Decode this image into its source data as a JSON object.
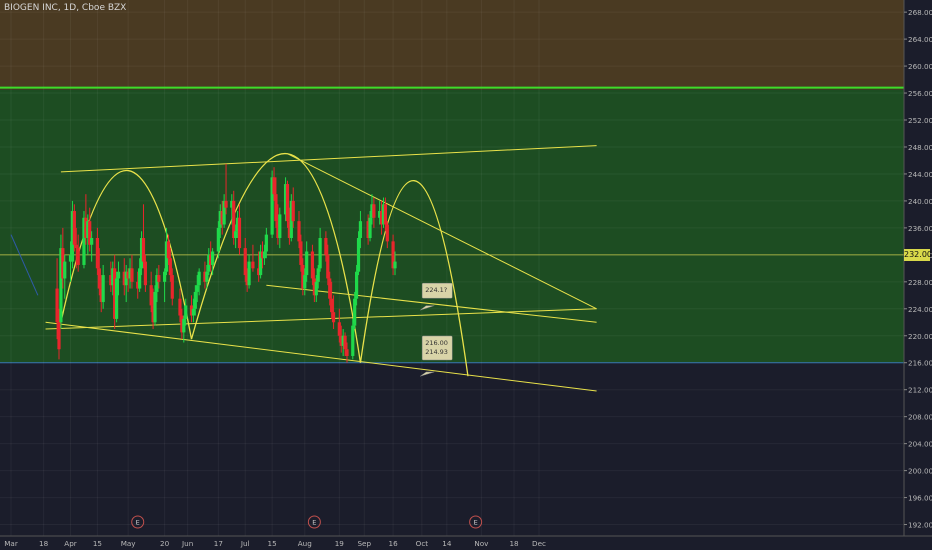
{
  "window": {
    "title": "BIOGEN INC, 1D, Cboe BZX"
  },
  "chart_data": {
    "type": "candlestick",
    "title": "BIOGEN INC, 1D, Cboe BZX",
    "symbol": "BIOGEN INC",
    "interval": "1D",
    "exchange": "Cboe BZX",
    "ylim": [
      190.3,
      269.8
    ],
    "y_ticks": [
      192,
      196,
      200,
      204,
      208,
      212,
      216,
      220,
      224,
      228,
      232,
      236,
      240,
      244,
      248,
      252,
      256,
      260,
      264,
      268
    ],
    "x_ticks": [
      "Mar",
      "18",
      "Apr",
      "15",
      "May",
      "20",
      "Jun",
      "17",
      "Jul",
      "15",
      "Aug",
      "19",
      "Sep",
      "16",
      "Oct",
      "14",
      "Nov",
      "18",
      "Dec"
    ],
    "current_price_label": "232.00",
    "colors": {
      "up": "#1fd94a",
      "down": "#e8262c",
      "trend_lines": "#e9e24a",
      "resistance_line": "#3cdd2a",
      "upper_zone": "#4a3a22",
      "middle_zone": "#1d4d22",
      "lower_zone": "#1b1d2b"
    },
    "zones": [
      {
        "name": "upper",
        "from": 256.5,
        "to": 270
      },
      {
        "name": "middle",
        "from": 216.0,
        "to": 256.5
      },
      {
        "name": "lower",
        "from": 190,
        "to": 216.0
      }
    ],
    "resistance_level": 256.8,
    "candles": [
      {
        "x": "Mar 25",
        "o": 227.0,
        "h": 231.5,
        "l": 219.5,
        "c": 222.0
      },
      {
        "x": "Mar 26",
        "o": 222.5,
        "h": 224.0,
        "l": 216.5,
        "c": 218.0
      },
      {
        "x": "Mar 27",
        "o": 222.0,
        "h": 235.0,
        "l": 221.0,
        "c": 233.0
      },
      {
        "x": "Mar 28",
        "o": 233.0,
        "h": 236.0,
        "l": 227.0,
        "c": 228.5
      },
      {
        "x": "Mar 29",
        "o": 228.5,
        "h": 232.0,
        "l": 225.5,
        "c": 231.0
      },
      {
        "x": "Apr 1",
        "o": 231.0,
        "h": 234.0,
        "l": 228.0,
        "c": 232.0
      },
      {
        "x": "Apr 2",
        "o": 231.0,
        "h": 240.0,
        "l": 230.0,
        "c": 238.5
      },
      {
        "x": "Apr 3",
        "o": 238.5,
        "h": 239.5,
        "l": 232.5,
        "c": 233.5
      },
      {
        "x": "Apr 4",
        "o": 233.5,
        "h": 236.0,
        "l": 230.0,
        "c": 233.0
      },
      {
        "x": "Apr 5",
        "o": 233.0,
        "h": 235.0,
        "l": 229.5,
        "c": 230.5
      },
      {
        "x": "Apr 8",
        "o": 230.5,
        "h": 238.5,
        "l": 230.0,
        "c": 237.5
      },
      {
        "x": "Apr 9",
        "o": 237.5,
        "h": 241.0,
        "l": 233.5,
        "c": 234.5
      },
      {
        "x": "Apr 10",
        "o": 234.5,
        "h": 238.0,
        "l": 232.0,
        "c": 237.0
      },
      {
        "x": "Apr 11",
        "o": 237.0,
        "h": 239.0,
        "l": 232.5,
        "c": 233.5
      },
      {
        "x": "Apr 12",
        "o": 233.5,
        "h": 235.5,
        "l": 231.0,
        "c": 234.5
      },
      {
        "x": "Apr 15",
        "o": 234.5,
        "h": 236.0,
        "l": 229.0,
        "c": 230.0
      },
      {
        "x": "Apr 16",
        "o": 230.0,
        "h": 233.0,
        "l": 226.0,
        "c": 227.0
      },
      {
        "x": "Apr 17",
        "o": 227.0,
        "h": 229.0,
        "l": 223.5,
        "c": 225.0
      },
      {
        "x": "Apr 18",
        "o": 225.0,
        "h": 230.5,
        "l": 224.0,
        "c": 229.0
      },
      {
        "x": "Apr 22",
        "o": 229.0,
        "h": 231.0,
        "l": 226.5,
        "c": 227.5
      },
      {
        "x": "Apr 23",
        "o": 227.5,
        "h": 231.0,
        "l": 226.0,
        "c": 230.0
      },
      {
        "x": "Apr 24",
        "o": 230.0,
        "h": 232.0,
        "l": 221.0,
        "c": 222.5
      },
      {
        "x": "Apr 25",
        "o": 222.5,
        "h": 229.5,
        "l": 222.0,
        "c": 228.5
      },
      {
        "x": "Apr 26",
        "o": 228.5,
        "h": 231.0,
        "l": 226.0,
        "c": 229.5
      },
      {
        "x": "Apr 29",
        "o": 229.5,
        "h": 231.5,
        "l": 226.0,
        "c": 227.5
      },
      {
        "x": "Apr 30",
        "o": 227.5,
        "h": 230.5,
        "l": 225.0,
        "c": 229.5
      },
      {
        "x": "May 1",
        "o": 229.5,
        "h": 230.0,
        "l": 226.5,
        "c": 228.5
      },
      {
        "x": "May 2",
        "o": 228.5,
        "h": 231.5,
        "l": 227.0,
        "c": 230.0
      },
      {
        "x": "May 3",
        "o": 230.0,
        "h": 232.0,
        "l": 227.0,
        "c": 228.0
      },
      {
        "x": "May 6",
        "o": 228.0,
        "h": 229.5,
        "l": 225.5,
        "c": 227.0
      },
      {
        "x": "May 7",
        "o": 227.0,
        "h": 231.5,
        "l": 226.5,
        "c": 230.0
      },
      {
        "x": "May 8",
        "o": 230.0,
        "h": 235.5,
        "l": 229.0,
        "c": 234.5
      },
      {
        "x": "May 9",
        "o": 234.5,
        "h": 239.5,
        "l": 230.0,
        "c": 231.0
      },
      {
        "x": "May 10",
        "o": 231.0,
        "h": 232.0,
        "l": 226.5,
        "c": 227.5
      },
      {
        "x": "May 13",
        "o": 227.5,
        "h": 229.5,
        "l": 223.5,
        "c": 224.5
      },
      {
        "x": "May 14",
        "o": 224.5,
        "h": 227.0,
        "l": 221.0,
        "c": 222.0
      },
      {
        "x": "May 15",
        "o": 222.0,
        "h": 227.5,
        "l": 221.5,
        "c": 226.5
      },
      {
        "x": "May 16",
        "o": 226.5,
        "h": 230.0,
        "l": 225.0,
        "c": 229.0
      },
      {
        "x": "May 17",
        "o": 229.0,
        "h": 230.5,
        "l": 227.0,
        "c": 228.0
      },
      {
        "x": "May 20",
        "o": 228.0,
        "h": 230.0,
        "l": 225.0,
        "c": 229.5
      },
      {
        "x": "May 21",
        "o": 229.5,
        "h": 236.0,
        "l": 229.0,
        "c": 234.0
      },
      {
        "x": "May 22",
        "o": 234.0,
        "h": 235.0,
        "l": 230.5,
        "c": 231.5
      },
      {
        "x": "May 23",
        "o": 231.5,
        "h": 233.0,
        "l": 228.0,
        "c": 229.0
      },
      {
        "x": "May 24",
        "o": 229.0,
        "h": 230.0,
        "l": 224.5,
        "c": 225.5
      },
      {
        "x": "May 28",
        "o": 225.5,
        "h": 227.0,
        "l": 222.0,
        "c": 223.0
      },
      {
        "x": "May 29",
        "o": 223.0,
        "h": 224.0,
        "l": 219.5,
        "c": 220.5
      },
      {
        "x": "May 30",
        "o": 220.5,
        "h": 223.0,
        "l": 219.0,
        "c": 222.5
      },
      {
        "x": "May 31",
        "o": 222.5,
        "h": 225.5,
        "l": 221.5,
        "c": 224.5
      },
      {
        "x": "Jun 3",
        "o": 224.5,
        "h": 226.0,
        "l": 222.0,
        "c": 223.0
      },
      {
        "x": "Jun 4",
        "o": 223.0,
        "h": 225.5,
        "l": 222.0,
        "c": 224.0
      },
      {
        "x": "Jun 5",
        "o": 224.0,
        "h": 227.5,
        "l": 223.0,
        "c": 226.5
      },
      {
        "x": "Jun 6",
        "o": 226.5,
        "h": 229.0,
        "l": 225.0,
        "c": 227.5
      },
      {
        "x": "Jun 7",
        "o": 227.5,
        "h": 230.0,
        "l": 226.0,
        "c": 229.5
      },
      {
        "x": "Jun 10",
        "o": 229.5,
        "h": 231.0,
        "l": 227.0,
        "c": 228.0
      },
      {
        "x": "Jun 11",
        "o": 228.0,
        "h": 230.5,
        "l": 227.0,
        "c": 229.5
      },
      {
        "x": "Jun 12",
        "o": 229.5,
        "h": 233.0,
        "l": 229.0,
        "c": 232.0
      },
      {
        "x": "Jun 13",
        "o": 232.0,
        "h": 234.0,
        "l": 229.5,
        "c": 230.5
      },
      {
        "x": "Jun 14",
        "o": 230.5,
        "h": 233.0,
        "l": 229.0,
        "c": 232.5
      },
      {
        "x": "Jun 17",
        "o": 232.5,
        "h": 237.0,
        "l": 231.5,
        "c": 236.0
      },
      {
        "x": "Jun 18",
        "o": 236.0,
        "h": 239.5,
        "l": 234.5,
        "c": 238.5
      },
      {
        "x": "Jun 19",
        "o": 238.5,
        "h": 240.0,
        "l": 235.0,
        "c": 236.5
      },
      {
        "x": "Jun 20",
        "o": 236.5,
        "h": 241.0,
        "l": 236.0,
        "c": 240.0
      },
      {
        "x": "Jun 21",
        "o": 240.0,
        "h": 245.5,
        "l": 238.0,
        "c": 239.0
      },
      {
        "x": "Jun 24",
        "o": 239.0,
        "h": 241.0,
        "l": 236.5,
        "c": 240.0
      },
      {
        "x": "Jun 25",
        "o": 240.0,
        "h": 241.5,
        "l": 233.5,
        "c": 234.5
      },
      {
        "x": "Jun 26",
        "o": 234.5,
        "h": 236.5,
        "l": 233.0,
        "c": 235.5
      },
      {
        "x": "Jun 27",
        "o": 235.5,
        "h": 238.5,
        "l": 234.5,
        "c": 237.5
      },
      {
        "x": "Jun 28",
        "o": 237.5,
        "h": 239.5,
        "l": 232.0,
        "c": 233.0
      },
      {
        "x": "Jul 1",
        "o": 233.0,
        "h": 234.5,
        "l": 228.0,
        "c": 229.0
      },
      {
        "x": "Jul 2",
        "o": 229.0,
        "h": 230.0,
        "l": 226.5,
        "c": 227.5
      },
      {
        "x": "Jul 3",
        "o": 227.5,
        "h": 232.0,
        "l": 227.0,
        "c": 231.0
      },
      {
        "x": "Jul 5",
        "o": 231.0,
        "h": 233.5,
        "l": 229.5,
        "c": 230.0
      },
      {
        "x": "Jul 8",
        "o": 230.0,
        "h": 232.5,
        "l": 228.0,
        "c": 229.0
      },
      {
        "x": "Jul 9",
        "o": 229.0,
        "h": 233.5,
        "l": 228.5,
        "c": 232.5
      },
      {
        "x": "Jul 10",
        "o": 232.5,
        "h": 234.0,
        "l": 230.0,
        "c": 231.5
      },
      {
        "x": "Jul 11",
        "o": 231.5,
        "h": 233.5,
        "l": 230.5,
        "c": 232.5
      },
      {
        "x": "Jul 12",
        "o": 232.5,
        "h": 236.0,
        "l": 231.5,
        "c": 235.0
      },
      {
        "x": "Jul 15",
        "o": 235.0,
        "h": 244.5,
        "l": 234.5,
        "c": 243.5
      },
      {
        "x": "Jul 16",
        "o": 243.5,
        "h": 245.0,
        "l": 240.0,
        "c": 241.0
      },
      {
        "x": "Jul 17",
        "o": 241.0,
        "h": 243.5,
        "l": 236.0,
        "c": 237.0
      },
      {
        "x": "Jul 18",
        "o": 237.0,
        "h": 239.5,
        "l": 233.5,
        "c": 234.5
      },
      {
        "x": "Jul 19",
        "o": 234.5,
        "h": 239.0,
        "l": 233.0,
        "c": 238.0
      },
      {
        "x": "Jul 22",
        "o": 238.0,
        "h": 243.5,
        "l": 237.0,
        "c": 242.5
      },
      {
        "x": "Jul 23",
        "o": 242.5,
        "h": 243.0,
        "l": 236.0,
        "c": 237.0
      },
      {
        "x": "Jul 24",
        "o": 237.0,
        "h": 239.0,
        "l": 233.5,
        "c": 234.5
      },
      {
        "x": "Jul 25",
        "o": 234.5,
        "h": 241.0,
        "l": 234.0,
        "c": 240.0
      },
      {
        "x": "Jul 26",
        "o": 240.0,
        "h": 242.0,
        "l": 236.0,
        "c": 237.0
      },
      {
        "x": "Jul 29",
        "o": 237.0,
        "h": 238.5,
        "l": 233.0,
        "c": 234.0
      },
      {
        "x": "Jul 30",
        "o": 234.0,
        "h": 235.0,
        "l": 229.5,
        "c": 230.5
      },
      {
        "x": "Jul 31",
        "o": 230.5,
        "h": 231.5,
        "l": 226.0,
        "c": 227.0
      },
      {
        "x": "Aug 1",
        "o": 227.0,
        "h": 230.0,
        "l": 226.0,
        "c": 229.0
      },
      {
        "x": "Aug 2",
        "o": 229.0,
        "h": 234.0,
        "l": 228.0,
        "c": 232.5
      },
      {
        "x": "Aug 5",
        "o": 232.5,
        "h": 233.5,
        "l": 227.5,
        "c": 228.5
      },
      {
        "x": "Aug 6",
        "o": 228.5,
        "h": 230.0,
        "l": 225.0,
        "c": 226.0
      },
      {
        "x": "Aug 7",
        "o": 226.0,
        "h": 229.0,
        "l": 225.0,
        "c": 228.0
      },
      {
        "x": "Aug 8",
        "o": 228.0,
        "h": 230.5,
        "l": 227.0,
        "c": 230.0
      },
      {
        "x": "Aug 9",
        "o": 230.0,
        "h": 236.0,
        "l": 229.5,
        "c": 234.5
      },
      {
        "x": "Aug 12",
        "o": 234.5,
        "h": 235.5,
        "l": 231.0,
        "c": 232.0
      },
      {
        "x": "Aug 13",
        "o": 232.0,
        "h": 233.5,
        "l": 227.5,
        "c": 228.5
      },
      {
        "x": "Aug 14",
        "o": 228.5,
        "h": 229.5,
        "l": 224.5,
        "c": 225.5
      },
      {
        "x": "Aug 15",
        "o": 225.5,
        "h": 228.0,
        "l": 222.5,
        "c": 223.5
      },
      {
        "x": "Aug 16",
        "o": 223.5,
        "h": 226.0,
        "l": 221.0,
        "c": 222.0
      },
      {
        "x": "Aug 19",
        "o": 222.0,
        "h": 224.0,
        "l": 219.0,
        "c": 220.0
      },
      {
        "x": "Aug 20",
        "o": 220.0,
        "h": 221.5,
        "l": 217.5,
        "c": 218.5
      },
      {
        "x": "Aug 21",
        "o": 218.5,
        "h": 221.0,
        "l": 217.0,
        "c": 220.0
      },
      {
        "x": "Aug 22",
        "o": 220.0,
        "h": 220.5,
        "l": 217.0,
        "c": 218.0
      },
      {
        "x": "Aug 23",
        "o": 218.0,
        "h": 219.0,
        "l": 216.0,
        "c": 217.0
      },
      {
        "x": "Aug 26",
        "o": 217.0,
        "h": 222.5,
        "l": 216.5,
        "c": 221.5
      },
      {
        "x": "Aug 27",
        "o": 221.5,
        "h": 226.5,
        "l": 221.0,
        "c": 225.5
      },
      {
        "x": "Aug 28",
        "o": 225.5,
        "h": 230.5,
        "l": 224.5,
        "c": 229.5
      },
      {
        "x": "Aug 29",
        "o": 229.5,
        "h": 235.5,
        "l": 229.0,
        "c": 234.5
      },
      {
        "x": "Aug 30",
        "o": 234.5,
        "h": 238.5,
        "l": 233.0,
        "c": 237.0
      },
      {
        "x": "Sep 3",
        "o": 237.0,
        "h": 238.0,
        "l": 233.5,
        "c": 234.5
      },
      {
        "x": "Sep 4",
        "o": 234.5,
        "h": 238.5,
        "l": 234.0,
        "c": 237.5
      },
      {
        "x": "Sep 5",
        "o": 237.5,
        "h": 241.0,
        "l": 236.5,
        "c": 239.5
      },
      {
        "x": "Sep 6",
        "o": 239.5,
        "h": 240.5,
        "l": 236.0,
        "c": 237.5
      },
      {
        "x": "Sep 9",
        "o": 237.5,
        "h": 240.0,
        "l": 236.5,
        "c": 238.5
      },
      {
        "x": "Sep 10",
        "o": 238.5,
        "h": 240.0,
        "l": 235.0,
        "c": 236.5
      },
      {
        "x": "Sep 11",
        "o": 236.5,
        "h": 240.5,
        "l": 236.0,
        "c": 239.5
      },
      {
        "x": "Sep 12",
        "o": 239.5,
        "h": 240.5,
        "l": 235.5,
        "c": 236.5
      },
      {
        "x": "Sep 13",
        "o": 236.5,
        "h": 237.0,
        "l": 233.0,
        "c": 234.0
      },
      {
        "x": "Sep 16",
        "o": 234.0,
        "h": 235.0,
        "l": 229.0,
        "c": 230.0
      },
      {
        "x": "Sep 17",
        "o": 230.0,
        "h": 232.5,
        "l": 229.0,
        "c": 231.0
      }
    ],
    "trend_lines": [
      {
        "name": "upper-channel",
        "from": [
          "Mar 27",
          244.3
        ],
        "to": [
          "Dec 31",
          248.2
        ]
      },
      {
        "name": "lower-channel",
        "from": [
          "Mar 19",
          221.0
        ],
        "to": [
          "Dec 31",
          224.0
        ]
      },
      {
        "name": "support-line",
        "from": [
          "Mar 19",
          222.0
        ],
        "to": [
          "Dec 31",
          211.8
        ]
      },
      {
        "name": "descending-resistance",
        "from": [
          "Jul 23",
          247.0
        ],
        "to": [
          "Dec 31",
          224.0
        ]
      },
      {
        "name": "mid-support",
        "from": [
          "Jul 12",
          227.5
        ],
        "to": [
          "Dec 31",
          222.0
        ]
      },
      {
        "name": "steep-line",
        "from": [
          "Mar 1",
          235.0
        ],
        "to": [
          "Mar 15",
          226.0
        ]
      }
    ],
    "arcs": [
      {
        "name": "arc-1",
        "start": [
          "Mar 27",
          222.0
        ],
        "peak": [
          "May 1",
          244.5
        ],
        "end": [
          "Jun 3",
          219.5
        ]
      },
      {
        "name": "arc-2",
        "start": [
          "Jun 3",
          219.5
        ],
        "peak": [
          "Jul 23",
          247.0
        ],
        "end": [
          "Aug 30",
          216.0
        ]
      },
      {
        "name": "arc-3",
        "start": [
          "Aug 30",
          216.0
        ],
        "peak": [
          "Sep 27",
          243.0
        ],
        "end": [
          "Oct 25",
          214.0
        ]
      }
    ],
    "callouts": [
      {
        "name": "callout-upper",
        "lines": [
          "224.1?"
        ]
      },
      {
        "name": "callout-lower",
        "lines": [
          "216.00",
          "214.93"
        ]
      }
    ],
    "earnings_markers": [
      "E",
      "E",
      "E"
    ]
  }
}
